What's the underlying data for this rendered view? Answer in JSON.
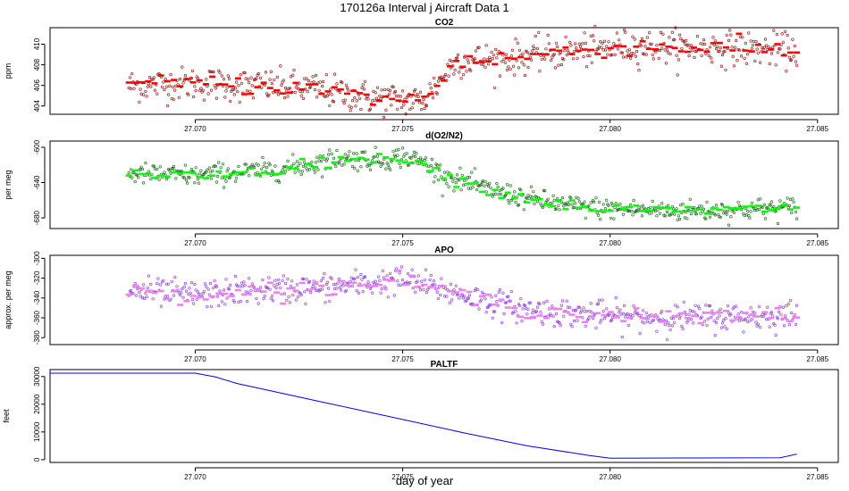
{
  "figure_title": "170126a   Interval j Aircraft Data 1",
  "xlabel": "day of year",
  "chart_data": [
    {
      "type": "scatter",
      "title": "CO2",
      "ylabel": "ppm",
      "xlim": [
        27.0665,
        27.0855
      ],
      "ylim": [
        403.2,
        411.6
      ],
      "xticks": [
        27.07,
        27.075,
        27.08,
        27.085
      ],
      "xtick_labels": [
        "27.070",
        "27.075",
        "27.080",
        "27.085"
      ],
      "yticks": [
        404,
        406,
        408,
        410
      ],
      "ytick_labels": [
        "404",
        "406",
        "408",
        "410"
      ],
      "grid": false,
      "colors": {
        "points": "#8b0000",
        "averages": "#ff0000"
      },
      "x_range": [
        27.0684,
        27.0845
      ],
      "trend": [
        [
          27.0684,
          406.0
        ],
        [
          27.07,
          406.2
        ],
        [
          27.072,
          405.9
        ],
        [
          27.073,
          405.6
        ],
        [
          27.074,
          404.9
        ],
        [
          27.075,
          404.6
        ],
        [
          27.0755,
          404.5
        ],
        [
          27.076,
          407.0
        ],
        [
          27.0763,
          408.4
        ],
        [
          27.0775,
          408.6
        ],
        [
          27.079,
          409.3
        ],
        [
          27.0805,
          409.8
        ],
        [
          27.082,
          409.7
        ],
        [
          27.0845,
          409.4
        ]
      ],
      "noise_sd": 0.8
    },
    {
      "type": "scatter",
      "title": "d(O2/N2)",
      "ylabel": "per meg",
      "xlim": [
        27.0665,
        27.0855
      ],
      "ylim": [
        -692,
        -593
      ],
      "xticks": [
        27.07,
        27.075,
        27.08,
        27.085
      ],
      "xtick_labels": [
        "27.070",
        "27.075",
        "27.080",
        "27.085"
      ],
      "yticks": [
        -680,
        -640,
        -600
      ],
      "ytick_labels": [
        "-680",
        "-640",
        "-600"
      ],
      "grid": false,
      "colors": {
        "points": "#006400",
        "averages": "#00ff00"
      },
      "x_range": [
        27.0684,
        27.0845
      ],
      "trend": [
        [
          27.0684,
          -630
        ],
        [
          27.07,
          -632
        ],
        [
          27.0715,
          -627
        ],
        [
          27.0725,
          -622
        ],
        [
          27.0735,
          -612
        ],
        [
          27.0745,
          -615
        ],
        [
          27.075,
          -610
        ],
        [
          27.0755,
          -617
        ],
        [
          27.076,
          -632
        ],
        [
          27.077,
          -647
        ],
        [
          27.078,
          -658
        ],
        [
          27.079,
          -666
        ],
        [
          27.08,
          -670
        ],
        [
          27.0815,
          -672
        ],
        [
          27.083,
          -671
        ],
        [
          27.0845,
          -668
        ]
      ],
      "noise_sd": 6
    },
    {
      "type": "scatter",
      "title": "APO",
      "ylabel": "approx. per meg",
      "xlim": [
        27.0665,
        27.0855
      ],
      "ylim": [
        -387,
        -297
      ],
      "xticks": [
        27.07,
        27.075,
        27.08,
        27.085
      ],
      "xtick_labels": [
        "27.070",
        "27.075",
        "27.080",
        "27.085"
      ],
      "yticks": [
        -380,
        -360,
        -340,
        -320,
        -300
      ],
      "ytick_labels": [
        "-380",
        "-360",
        "-340",
        "-320",
        "-300"
      ],
      "grid": false,
      "colors": {
        "points": "#8a2be2",
        "averages": "#ee82ee"
      },
      "x_range": [
        27.0684,
        27.0845
      ],
      "trend": [
        [
          27.0684,
          -333
        ],
        [
          27.07,
          -337
        ],
        [
          27.0715,
          -332
        ],
        [
          27.073,
          -330
        ],
        [
          27.074,
          -326
        ],
        [
          27.075,
          -322
        ],
        [
          27.076,
          -332
        ],
        [
          27.077,
          -343
        ],
        [
          27.078,
          -352
        ],
        [
          27.079,
          -355
        ],
        [
          27.08,
          -358
        ],
        [
          27.0815,
          -360
        ],
        [
          27.083,
          -359
        ],
        [
          27.0845,
          -357
        ]
      ],
      "noise_sd": 7
    },
    {
      "type": "line",
      "title": "PALTF",
      "ylabel": "feet",
      "xlim": [
        27.0665,
        27.0855
      ],
      "ylim": [
        -1000,
        32500
      ],
      "xticks": [
        27.07,
        27.075,
        27.08,
        27.085
      ],
      "xtick_labels": [
        "27.070",
        "27.075",
        "27.080",
        "27.085"
      ],
      "yticks": [
        0,
        10000,
        20000,
        30000
      ],
      "ytick_labels": [
        "0",
        "10000",
        "20000",
        "30000"
      ],
      "grid": false,
      "colors": {
        "line": "#0000ff"
      },
      "x": [
        27.0665,
        27.07,
        27.0705,
        27.071,
        27.073,
        27.075,
        27.0765,
        27.078,
        27.0795,
        27.08,
        27.082,
        27.0841,
        27.0845
      ],
      "y": [
        31200,
        31200,
        29800,
        27500,
        21000,
        14500,
        9600,
        5000,
        1500,
        500,
        600,
        700,
        2000
      ]
    }
  ]
}
